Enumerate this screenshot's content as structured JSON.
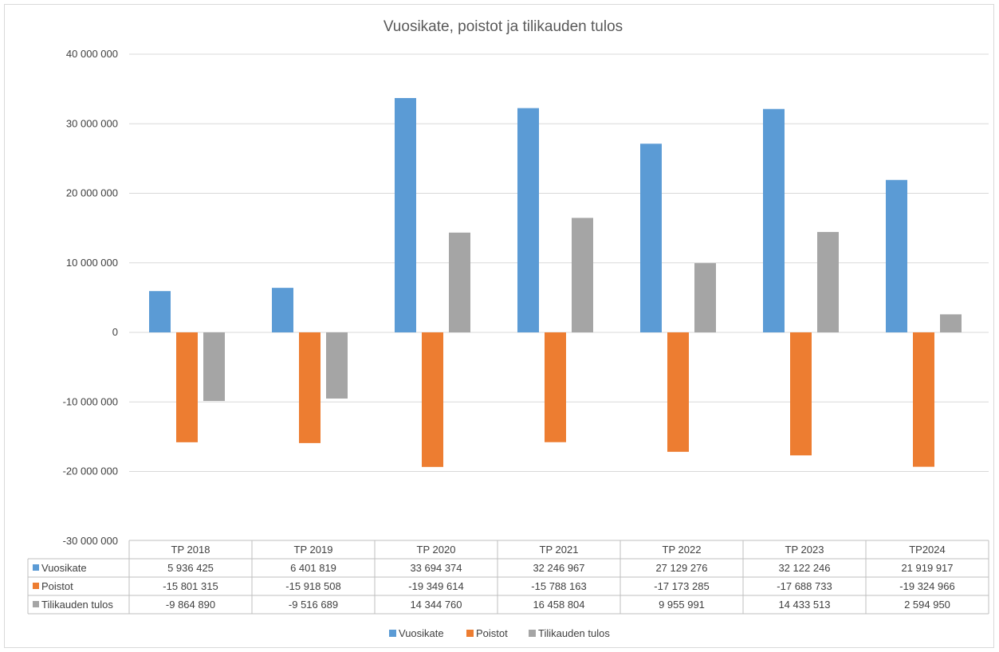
{
  "chart_data": {
    "type": "bar",
    "title": "Vuosikate, poistot ja tilikauden tulos",
    "categories": [
      "TP 2018",
      "TP 2019",
      "TP 2020",
      "TP 2021",
      "TP 2022",
      "TP 2023",
      "TP2024"
    ],
    "series": [
      {
        "name": "Vuosikate",
        "color": "#5b9bd5",
        "values": [
          5936425,
          6401819,
          33694374,
          32246967,
          27129276,
          32122246,
          21919917
        ],
        "labels": [
          "5 936 425",
          "6 401 819",
          "33 694 374",
          "32 246 967",
          "27 129 276",
          "32 122 246",
          "21 919 917"
        ]
      },
      {
        "name": "Poistot",
        "color": "#ed7d31",
        "values": [
          -15801315,
          -15918508,
          -19349614,
          -15788163,
          -17173285,
          -17688733,
          -19324966
        ],
        "labels": [
          "-15 801 315",
          "-15 918 508",
          "-19 349 614",
          "-15 788 163",
          "-17 173 285",
          "-17 688 733",
          "-19 324 966"
        ]
      },
      {
        "name": "Tilikauden tulos",
        "color": "#a5a5a5",
        "values": [
          -9864890,
          -9516689,
          14344760,
          16458804,
          9955991,
          14433513,
          2594950
        ],
        "labels": [
          "-9 864 890",
          "-9 516 689",
          "14 344 760",
          "16 458 804",
          "9 955 991",
          "14 433 513",
          "2 594 950"
        ]
      }
    ],
    "ylim": [
      -30000000,
      40000000
    ],
    "yticks": [
      40000000,
      30000000,
      20000000,
      10000000,
      0,
      -10000000,
      -20000000,
      -30000000
    ],
    "ytick_labels": [
      "40 000 000",
      "30 000 000",
      "20 000 000",
      "10 000 000",
      "0",
      "-10 000 000",
      "-20 000 000",
      "-30 000 000"
    ],
    "grid": true,
    "legend": "bottom",
    "data_table": true
  }
}
